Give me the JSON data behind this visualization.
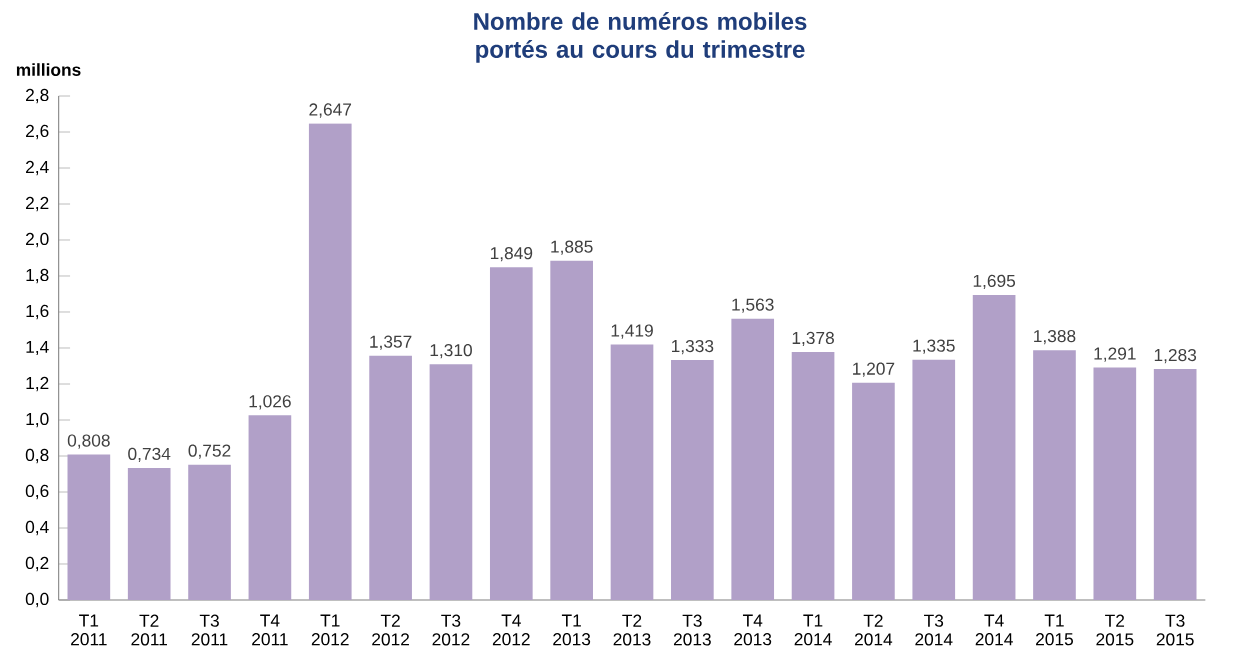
{
  "chart_data": {
    "type": "bar",
    "title": "Nombre de numéros mobiles portés au cours du trimestre",
    "ylabel": "millions",
    "categories": [
      "T1 2011",
      "T2 2011",
      "T3 2011",
      "T4 2011",
      "T1 2012",
      "T2 2012",
      "T3 2012",
      "T4 2012",
      "T1 2013",
      "T2 2013",
      "T3 2013",
      "T4 2013",
      "T1 2014",
      "T2 2014",
      "T3 2014",
      "T4 2014",
      "T1 2015",
      "T2 2015",
      "T3 2015"
    ],
    "values": [
      0.808,
      0.734,
      0.752,
      1.026,
      2.647,
      1.357,
      1.31,
      1.849,
      1.885,
      1.419,
      1.333,
      1.563,
      1.378,
      1.207,
      1.335,
      1.695,
      1.388,
      1.291,
      1.283
    ],
    "value_labels": [
      "0,808",
      "0,734",
      "0,752",
      "1,026",
      "2,647",
      "1,357",
      "1,310",
      "1,849",
      "1,885",
      "1,419",
      "1,333",
      "1,563",
      "1,378",
      "1,207",
      "1,335",
      "1,695",
      "1,388",
      "1,291",
      "1,283"
    ],
    "color": "#b1a0c8",
    "ylim": [
      0,
      2.8
    ],
    "yticks": [
      {
        "value": 0,
        "label": "0,0"
      },
      {
        "value": 0.2,
        "label": "0,2"
      },
      {
        "value": 0.4,
        "label": "0,4"
      },
      {
        "value": 0.6,
        "label": "0,6"
      },
      {
        "value": 0.8,
        "label": "0,8"
      },
      {
        "value": 1.0,
        "label": "1,0"
      },
      {
        "value": 1.2,
        "label": "1,2"
      },
      {
        "value": 1.4,
        "label": "1,4"
      },
      {
        "value": 1.6,
        "label": "1,6"
      },
      {
        "value": 1.8,
        "label": "1,8"
      },
      {
        "value": 2.0,
        "label": "2,0"
      },
      {
        "value": 2.2,
        "label": "2,2"
      },
      {
        "value": 2.4,
        "label": "2,4"
      },
      {
        "value": 2.6,
        "label": "2,6"
      },
      {
        "value": 2.8,
        "label": "2,8"
      }
    ],
    "grid": false
  }
}
